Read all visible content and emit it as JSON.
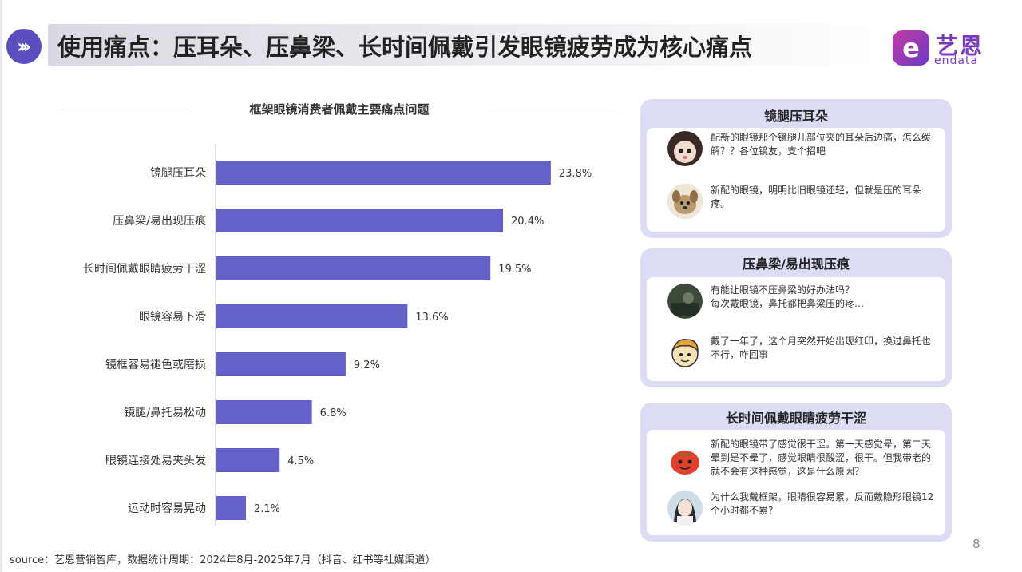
{
  "header": {
    "title": "使用痛点：压耳朵、压鼻梁、长时间佩戴引发眼镜疲劳成为核心痛点",
    "arrow_icon": "double-chevron-right-icon",
    "accent_color": "#5b4fbf"
  },
  "logo": {
    "mark": "e",
    "cn": "艺恩",
    "en": "endata"
  },
  "chart_data": {
    "type": "bar",
    "orientation": "horizontal",
    "title": "框架眼镜消费者佩戴主要痛点问题",
    "categories": [
      "镜腿压耳朵",
      "压鼻梁/易出现压痕",
      "长时间佩戴眼睛疲劳干涩",
      "眼镜容易下滑",
      "镜框容易褪色或磨损",
      "镜腿/鼻托易松动",
      "眼镜连接处易夹头发",
      "运动时容易晃动"
    ],
    "values": [
      23.8,
      20.4,
      19.5,
      13.6,
      9.2,
      6.8,
      4.5,
      2.1
    ],
    "value_labels": [
      "23.8%",
      "20.4%",
      "19.5%",
      "13.6%",
      "9.2%",
      "6.8%",
      "4.5%",
      "2.1%"
    ],
    "unit": "%",
    "bar_color": "#6461c8",
    "xlim": [
      0,
      25
    ],
    "grid": false,
    "legend": "none"
  },
  "panels": [
    {
      "title": "镜腿压耳朵",
      "comments": [
        {
          "avatar": "girl-avatar-icon",
          "text": "配新的眼镜那个镜腿儿部位夹的耳朵后边痛，怎么缓解？？各位镜友，支个招吧"
        },
        {
          "avatar": "dog-avatar-icon",
          "text": "新配的眼镜，明明比旧眼镜还轻，但就是压的耳朵疼。"
        }
      ]
    },
    {
      "title": "压鼻梁/易出现压痕",
      "comments": [
        {
          "avatar": "photo-avatar-icon",
          "text": "有能让眼镜不压鼻梁的好办法吗？\n每次戴眼镜，鼻托都把鼻梁压的疼…"
        },
        {
          "avatar": "cartoon-boy-avatar-icon",
          "text": "戴了一年了，这个月突然开始出现红印，换过鼻托也不行，咋回事"
        }
      ]
    },
    {
      "title": "长时间佩戴眼睛疲劳干涩",
      "comments": [
        {
          "avatar": "tomato-avatar-icon",
          "text": "新配的眼镜带了感觉很干涩。第一天感觉晕，第二天晕到是不晕了，感觉眼睛很酸涩，很干。但我带老的就不会有这种感觉，这是什么原因？"
        },
        {
          "avatar": "woman-avatar-icon",
          "text": "为什么我戴框架，眼睛很容易累，反而戴隐形眼镜12个小时都不累?"
        }
      ]
    }
  ],
  "footer": {
    "source": "source：艺恩营销智库，数据统计周期：2024年8月-2025年7月（抖音、红书等社媒渠道）",
    "page_number": "8"
  }
}
